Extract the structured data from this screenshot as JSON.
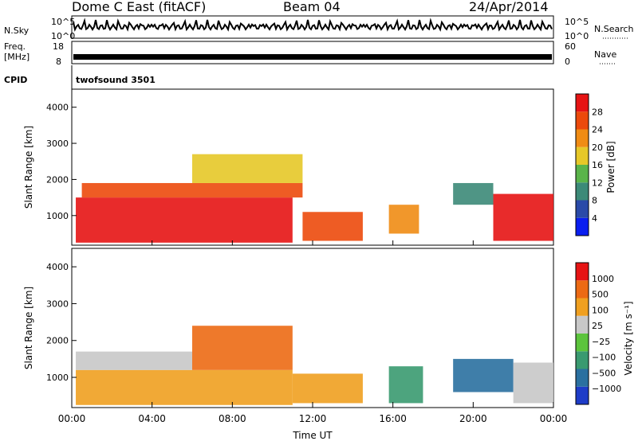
{
  "header": {
    "station": "Dome C East (fitACF)",
    "beam": "Beam 04",
    "date": "24/Apr/2014"
  },
  "nsky_panel": {
    "left_label": "N.Sky",
    "right_label": "N.Search",
    "left_ticks": [
      "10^5",
      "10^0"
    ],
    "right_ticks": [
      "10^5",
      "10^0"
    ]
  },
  "freq_panel": {
    "left_label_1": "Freq.",
    "left_label_2": "[MHz]",
    "right_label": "Nave",
    "left_ticks": [
      "18",
      "8"
    ],
    "right_ticks": [
      "60",
      "0"
    ]
  },
  "cpid": {
    "label": "CPID",
    "value": "twofsound 3501"
  },
  "axes": {
    "ylabel": "Slant Range [km]",
    "xlabel": "Time UT",
    "yticks": [
      "4000",
      "3000",
      "2000",
      "1000"
    ],
    "xticks": [
      "00:00",
      "04:00",
      "08:00",
      "12:00",
      "16:00",
      "20:00",
      "00:00"
    ]
  },
  "power_colorbar": {
    "label": "Power [dB]",
    "ticks": [
      "28",
      "24",
      "20",
      "16",
      "12",
      "8",
      "4"
    ],
    "colors": [
      "#0a1ef0",
      "#2a4aa8",
      "#3c8a78",
      "#5ab44a",
      "#e6c828",
      "#f08c14",
      "#ec4a0c",
      "#e61414"
    ]
  },
  "velocity_colorbar": {
    "label": "Velocity [m s⁻¹]",
    "ticks": [
      "1000",
      "500",
      "100",
      "25",
      "−25",
      "−100",
      "−500",
      "−1000"
    ],
    "colors": [
      "#1e3cc8",
      "#2a70a0",
      "#3a9a70",
      "#5cc43c",
      "#c8c8c8",
      "#f0a020",
      "#ec6a14",
      "#e61414"
    ]
  },
  "chart_data": {
    "type": "heatmap",
    "x_range_hours": [
      0,
      24
    ],
    "y_range_km": [
      180,
      4500
    ],
    "power_regions": [
      {
        "x0": 0.2,
        "x1": 11.0,
        "y0": 250,
        "y1": 1500,
        "color": "#e61414"
      },
      {
        "x0": 0.5,
        "x1": 11.5,
        "y0": 1500,
        "y1": 1900,
        "color": "#ec4a0c"
      },
      {
        "x0": 11.5,
        "x1": 14.5,
        "y0": 300,
        "y1": 1100,
        "color": "#ec4a0c"
      },
      {
        "x0": 15.8,
        "x1": 17.3,
        "y0": 500,
        "y1": 1300,
        "color": "#f08c14"
      },
      {
        "x0": 19.0,
        "x1": 21.0,
        "y0": 1300,
        "y1": 1900,
        "color": "#3c8a78"
      },
      {
        "x0": 21.0,
        "x1": 24.0,
        "y0": 300,
        "y1": 1600,
        "color": "#e61414"
      },
      {
        "x0": 6.0,
        "x1": 11.5,
        "y0": 1900,
        "y1": 2700,
        "color": "#e6c828"
      }
    ],
    "velocity_regions": [
      {
        "x0": 0.2,
        "x1": 11.0,
        "y0": 250,
        "y1": 1200,
        "color": "#f0a020"
      },
      {
        "x0": 0.2,
        "x1": 6.0,
        "y0": 1200,
        "y1": 1700,
        "color": "#c8c8c8"
      },
      {
        "x0": 6.0,
        "x1": 11.0,
        "y0": 1200,
        "y1": 2400,
        "color": "#ec6a14"
      },
      {
        "x0": 11.0,
        "x1": 14.5,
        "y0": 300,
        "y1": 1100,
        "color": "#f0a020"
      },
      {
        "x0": 15.8,
        "x1": 17.5,
        "y0": 300,
        "y1": 1300,
        "color": "#3a9a70"
      },
      {
        "x0": 19.0,
        "x1": 22.0,
        "y0": 600,
        "y1": 1500,
        "color": "#2a70a0"
      },
      {
        "x0": 22.0,
        "x1": 24.0,
        "y0": 300,
        "y1": 1400,
        "color": "#c8c8c8"
      }
    ]
  }
}
